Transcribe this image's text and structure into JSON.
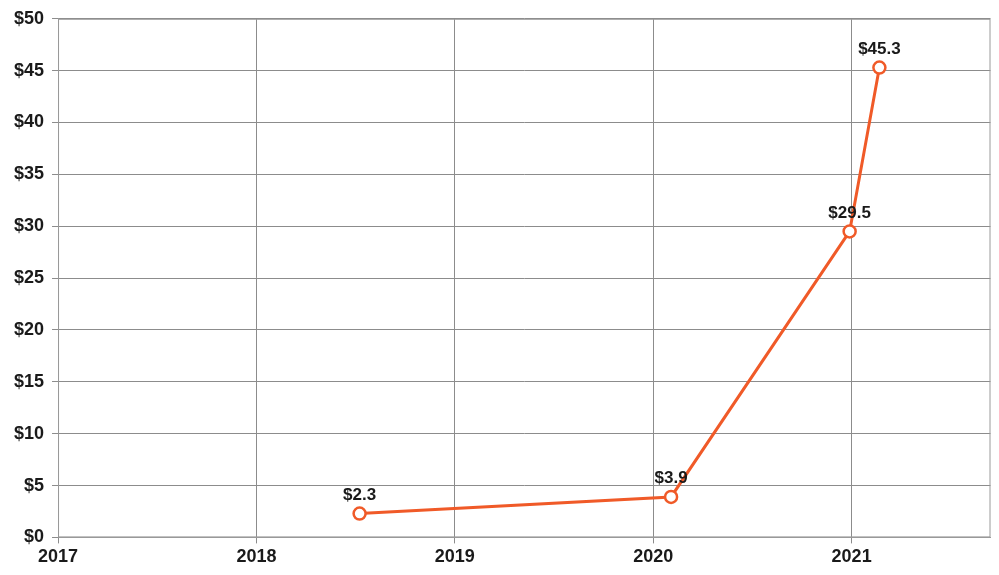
{
  "chart_data": {
    "type": "line",
    "x": [
      2018.52,
      2020.09,
      2020.99,
      2021.14
    ],
    "values": [
      2.3,
      3.9,
      29.5,
      45.3
    ],
    "value_labels": [
      "$2.3",
      "$3.9",
      "$29.5",
      "$45.3"
    ],
    "data_labels": true,
    "color": "#f05a28",
    "marker": "circle",
    "xlim": [
      2017,
      2021.7
    ],
    "xticks": [
      2017,
      2018,
      2019,
      2020,
      2021
    ],
    "ylim": [
      0,
      50
    ],
    "yticks": [
      {
        "value": 0,
        "label": "$0"
      },
      {
        "value": 5,
        "label": "$5"
      },
      {
        "value": 10,
        "label": "$10"
      },
      {
        "value": 15,
        "label": "$15"
      },
      {
        "value": 20,
        "label": "$20"
      },
      {
        "value": 25,
        "label": "$25"
      },
      {
        "value": 30,
        "label": "$30"
      },
      {
        "value": 35,
        "label": "$35"
      },
      {
        "value": 40,
        "label": "$40"
      },
      {
        "value": 45,
        "label": "$45"
      },
      {
        "value": 50,
        "label": "$50"
      }
    ],
    "grid": true
  }
}
